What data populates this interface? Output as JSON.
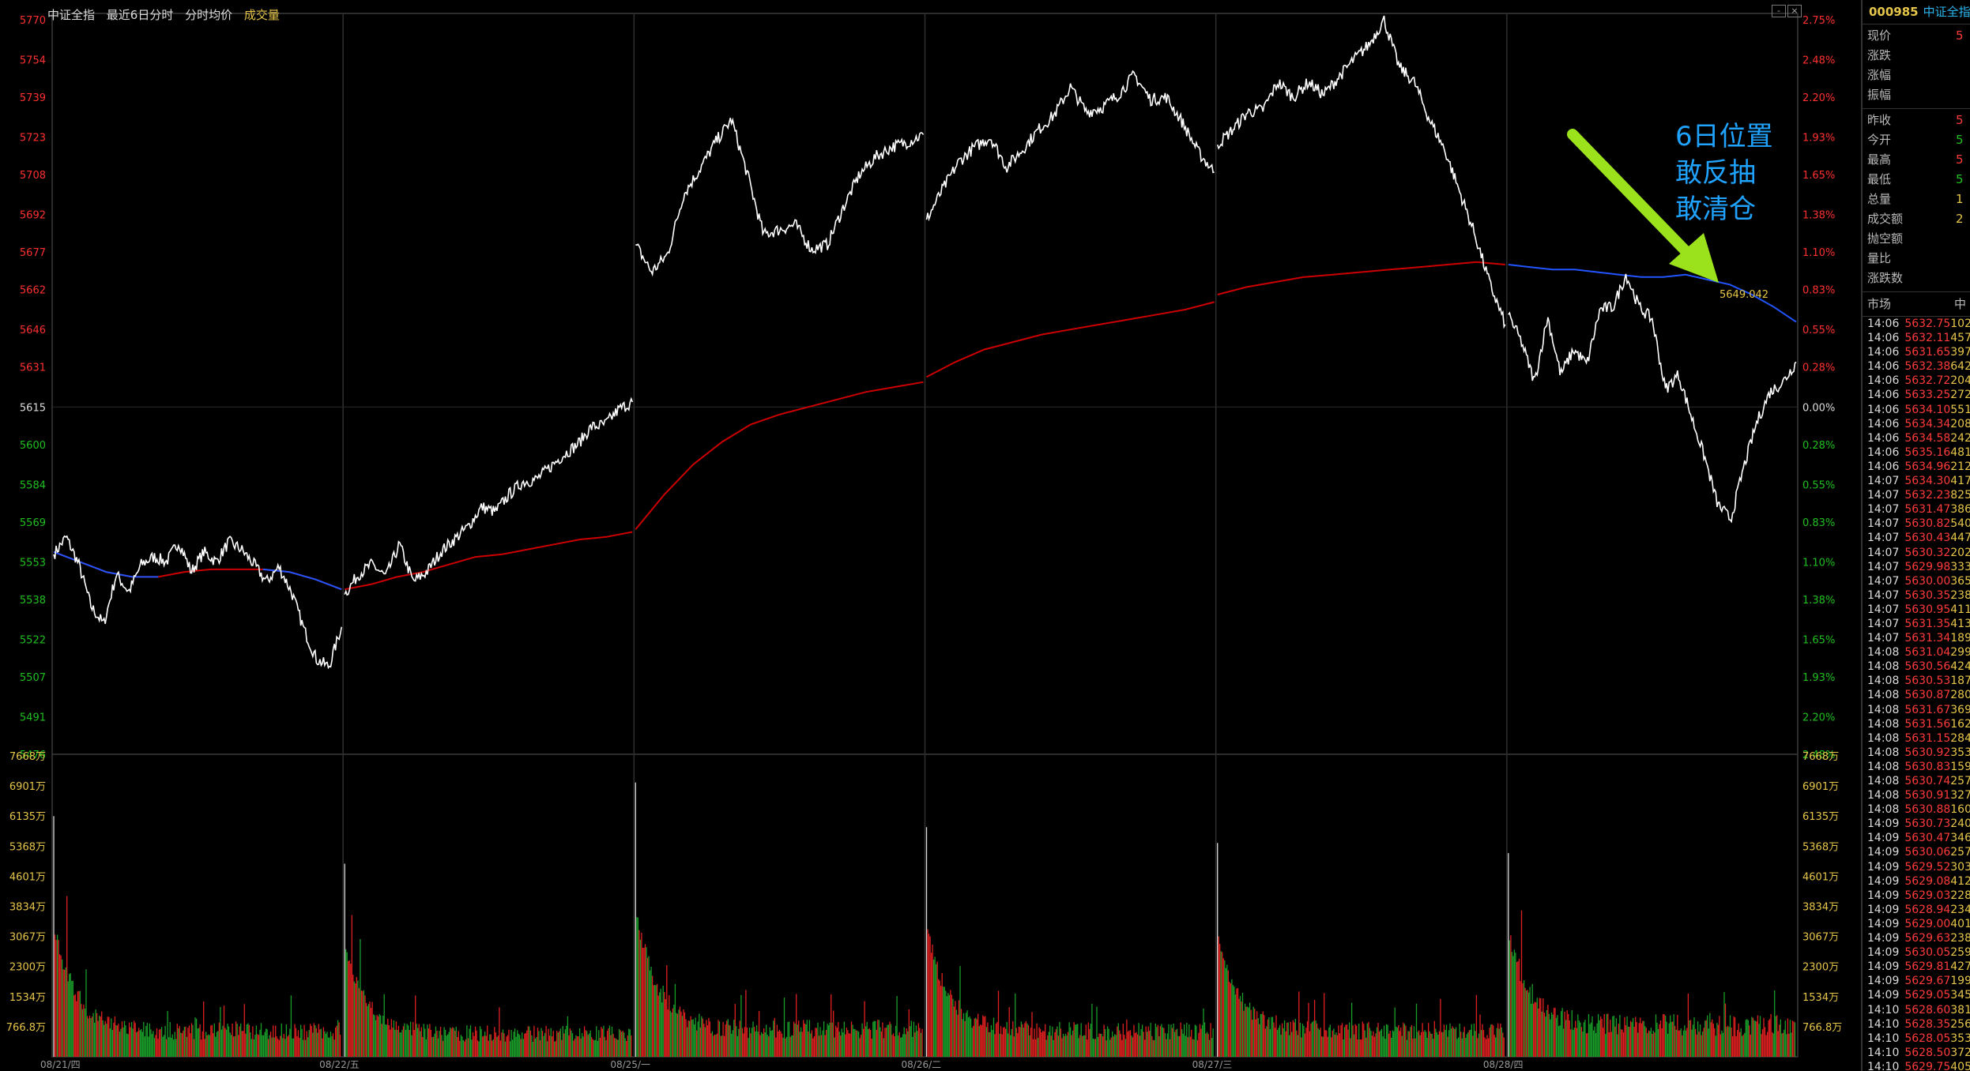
{
  "header": {
    "index_name": "中证全指",
    "mode": "最近6日分时",
    "line_legend": "分时均价",
    "vol_legend": "成交量"
  },
  "controls": {
    "minimize": "-",
    "close": "×"
  },
  "annotation": {
    "line1": "6日位置",
    "line2": "敢反抽",
    "line3": "敢清仓",
    "arrow_color": "#9be21c",
    "text_color": "#1fa3ff"
  },
  "last_avg_label": "5649.042",
  "colors": {
    "price_line": "#ffffff",
    "avg_line_early": "#cc0000",
    "avg_line_late": "#2255ff",
    "vol_up": "#e02020",
    "vol_down": "#1a9e2a",
    "axis_up": "#ff3030",
    "axis_down": "#1fc01f",
    "grid": "#3a3a3a"
  },
  "side": {
    "code": "000985",
    "name": "中证全指",
    "quote_group1": [
      "现价",
      "涨跌",
      "涨幅",
      "振幅"
    ],
    "quote_group1_vals": [
      "5",
      "",
      "",
      ""
    ],
    "quote_group2": [
      "昨收",
      "今开",
      "最高",
      "最低",
      "总量",
      "成交额",
      "抛空额",
      "量比",
      "涨跌数"
    ],
    "quote_group2_vals": [
      "5",
      "5",
      "5",
      "5",
      "1",
      "2",
      "",
      "",
      ""
    ],
    "ticks_header": [
      "市场",
      "中"
    ],
    "ticks": [
      [
        "14:06",
        "5632.75",
        "102"
      ],
      [
        "14:06",
        "5632.11",
        "457"
      ],
      [
        "14:06",
        "5631.65",
        "397"
      ],
      [
        "14:06",
        "5632.38",
        "642"
      ],
      [
        "14:06",
        "5632.72",
        "204"
      ],
      [
        "14:06",
        "5633.25",
        "272"
      ],
      [
        "14:06",
        "5634.10",
        "551"
      ],
      [
        "14:06",
        "5634.34",
        "208"
      ],
      [
        "14:06",
        "5634.58",
        "242"
      ],
      [
        "14:06",
        "5635.16",
        "481"
      ],
      [
        "14:06",
        "5634.96",
        "212"
      ],
      [
        "14:07",
        "5634.30",
        "417"
      ],
      [
        "14:07",
        "5632.23",
        "825"
      ],
      [
        "14:07",
        "5631.47",
        "386"
      ],
      [
        "14:07",
        "5630.82",
        "540"
      ],
      [
        "14:07",
        "5630.43",
        "447"
      ],
      [
        "14:07",
        "5630.32",
        "202"
      ],
      [
        "14:07",
        "5629.98",
        "333"
      ],
      [
        "14:07",
        "5630.00",
        "365"
      ],
      [
        "14:07",
        "5630.35",
        "238"
      ],
      [
        "14:07",
        "5630.95",
        "411"
      ],
      [
        "14:07",
        "5631.35",
        "413"
      ],
      [
        "14:07",
        "5631.34",
        "189"
      ],
      [
        "14:08",
        "5631.04",
        "299"
      ],
      [
        "14:08",
        "5630.56",
        "424"
      ],
      [
        "14:08",
        "5630.53",
        "187"
      ],
      [
        "14:08",
        "5630.87",
        "280"
      ],
      [
        "14:08",
        "5631.67",
        "369"
      ],
      [
        "14:08",
        "5631.56",
        "162"
      ],
      [
        "14:08",
        "5631.15",
        "284"
      ],
      [
        "14:08",
        "5630.92",
        "353"
      ],
      [
        "14:08",
        "5630.83",
        "159"
      ],
      [
        "14:08",
        "5630.74",
        "257"
      ],
      [
        "14:08",
        "5630.91",
        "327"
      ],
      [
        "14:08",
        "5630.88",
        "160"
      ],
      [
        "14:09",
        "5630.73",
        "240"
      ],
      [
        "14:09",
        "5630.47",
        "346"
      ],
      [
        "14:09",
        "5630.06",
        "257"
      ],
      [
        "14:09",
        "5629.52",
        "303"
      ],
      [
        "14:09",
        "5629.08",
        "412"
      ],
      [
        "14:09",
        "5629.03",
        "228"
      ],
      [
        "14:09",
        "5628.94",
        "234"
      ],
      [
        "14:09",
        "5629.00",
        "401"
      ],
      [
        "14:09",
        "5629.63",
        "238"
      ],
      [
        "14:09",
        "5630.05",
        "259"
      ],
      [
        "14:09",
        "5629.81",
        "427"
      ],
      [
        "14:09",
        "5629.67",
        "199"
      ],
      [
        "14:09",
        "5629.05",
        "345"
      ],
      [
        "14:10",
        "5628.60",
        "381"
      ],
      [
        "14:10",
        "5628.35",
        "256"
      ],
      [
        "14:10",
        "5628.05",
        "353"
      ],
      [
        "14:10",
        "5628.50",
        "372"
      ],
      [
        "14:10",
        "5629.75",
        "405"
      ]
    ]
  },
  "chart_data": {
    "type": "line",
    "title": "中证全指",
    "price_axis": {
      "ylim": [
        5476,
        5770
      ],
      "ticks": [
        5770,
        5754,
        5739,
        5723,
        5708,
        5692,
        5677,
        5662,
        5646,
        5631,
        5615,
        5600,
        5584,
        5569,
        5553,
        5538,
        5522,
        5507,
        5491,
        5476
      ],
      "ref": 5615
    },
    "pct_axis_ticks": [
      "2.75%",
      "2.48%",
      "2.20%",
      "1.93%",
      "1.65%",
      "1.38%",
      "1.10%",
      "0.83%",
      "0.55%",
      "0.28%",
      "0.00%",
      "0.28%",
      "0.55%",
      "0.83%",
      "1.10%",
      "1.38%",
      "1.65%",
      "1.93%",
      "2.20%",
      "2.48%"
    ],
    "volume_axis": {
      "ylim": [
        0,
        7668
      ],
      "unit": "万",
      "ticks": [
        "7668万",
        "6901万",
        "6135万",
        "5368万",
        "4601万",
        "3834万",
        "3067万",
        "2300万",
        "1534万",
        "766.8万"
      ]
    },
    "date_labels": [
      "08/21/四",
      "08/22/五",
      "08/25/一",
      "08/26/二",
      "08/27/三",
      "08/28/四"
    ],
    "price_series": [
      {
        "name": "08/21",
        "points": [
          5556,
          5563,
          5552,
          5535,
          5528,
          5548,
          5541,
          5552,
          5555,
          5553,
          5561,
          5549,
          5557,
          5553,
          5561,
          5558,
          5552,
          5545,
          5551,
          5541,
          5526,
          5514,
          5511,
          5527
        ]
      },
      {
        "name": "08/22",
        "points": [
          5540,
          5548,
          5552,
          5547,
          5560,
          5545,
          5549,
          5557,
          5562,
          5567,
          5575,
          5573,
          5580,
          5585,
          5586,
          5591,
          5596,
          5600,
          5607,
          5608,
          5614,
          5617
        ]
      },
      {
        "name": "08/25",
        "points": [
          5680,
          5669,
          5676,
          5700,
          5710,
          5721,
          5730,
          5708,
          5684,
          5686,
          5688,
          5678,
          5680,
          5695,
          5708,
          5715,
          5719,
          5721,
          5724
        ]
      },
      {
        "name": "08/26",
        "points": [
          5690,
          5702,
          5713,
          5719,
          5723,
          5711,
          5718,
          5726,
          5732,
          5743,
          5733,
          5735,
          5740,
          5748,
          5738,
          5739,
          5729,
          5717,
          5709
        ]
      },
      {
        "name": "08/27",
        "points": [
          5720,
          5726,
          5733,
          5734,
          5745,
          5739,
          5745,
          5740,
          5747,
          5754,
          5760,
          5770,
          5751,
          5745,
          5730,
          5718,
          5701,
          5684,
          5664,
          5648
        ]
      },
      {
        "name": "08/28",
        "points": [
          5652,
          5641,
          5625,
          5651,
          5628,
          5638,
          5632,
          5654,
          5655,
          5668,
          5655,
          5650,
          5622,
          5628,
          5611,
          5595,
          5576,
          5570,
          5591,
          5609,
          5621,
          5625,
          5633
        ]
      }
    ],
    "avg_series": [
      {
        "name": "08/21",
        "points": [
          5557,
          5553,
          5549,
          5547,
          5547,
          5549,
          5550,
          5550,
          5550,
          5549,
          5546,
          5542
        ]
      },
      {
        "name": "08/22",
        "points": [
          5542,
          5544,
          5547,
          5549,
          5552,
          5555,
          5556,
          5558,
          5560,
          5562,
          5563,
          5565
        ]
      },
      {
        "name": "08/25",
        "points": [
          5566,
          5580,
          5592,
          5601,
          5608,
          5612,
          5615,
          5618,
          5621,
          5623,
          5625
        ]
      },
      {
        "name": "08/26",
        "points": [
          5627,
          5633,
          5638,
          5641,
          5644,
          5646,
          5648,
          5650,
          5652,
          5654,
          5657
        ]
      },
      {
        "name": "08/27",
        "points": [
          5660,
          5663,
          5665,
          5667,
          5668,
          5669,
          5670,
          5671,
          5672,
          5673,
          5672
        ]
      },
      {
        "name": "08/28",
        "points": [
          5672,
          5671,
          5670,
          5670,
          5669,
          5668,
          5667,
          5667,
          5668,
          5666,
          5664,
          5660,
          5655,
          5649.042
        ]
      }
    ],
    "volume_series": [
      {
        "name": "08/21",
        "peak": 6135,
        "base": 420
      },
      {
        "name": "08/22",
        "peak": 4920,
        "base": 380
      },
      {
        "name": "08/25",
        "peak": 6990,
        "base": 450
      },
      {
        "name": "08/26",
        "peak": 5850,
        "base": 420
      },
      {
        "name": "08/27",
        "peak": 5450,
        "base": 430
      },
      {
        "name": "08/28",
        "peak": 5190,
        "base": 520
      }
    ]
  }
}
